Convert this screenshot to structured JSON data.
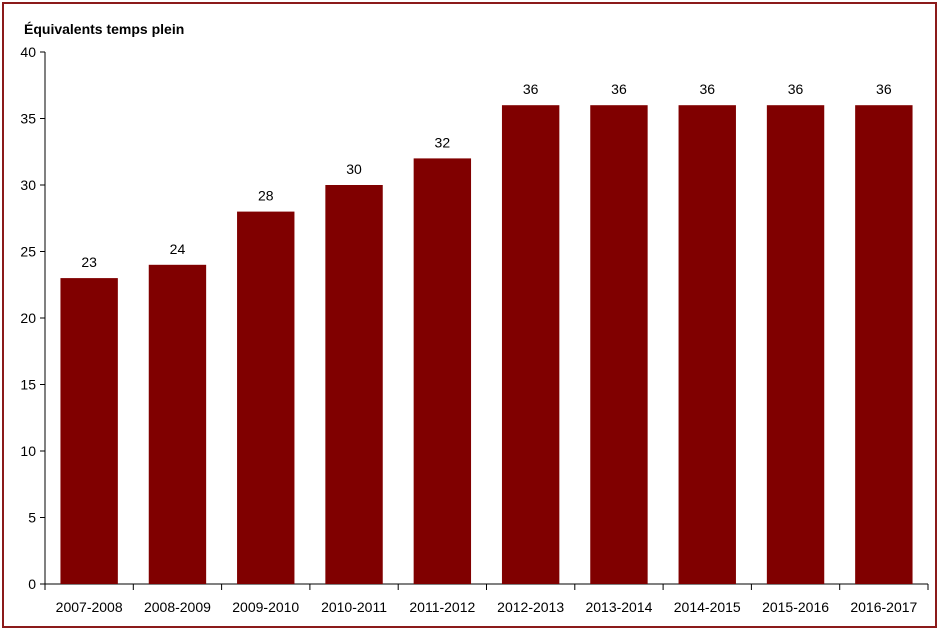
{
  "chart_data": {
    "type": "bar",
    "title": "",
    "xlabel": "",
    "ylabel": "Équivalents temps plein",
    "categories": [
      "2007-2008",
      "2008-2009",
      "2009-2010",
      "2010-2011",
      "2011-2012",
      "2012-2013",
      "2013-2014",
      "2014-2015",
      "2015-2016",
      "2016-2017"
    ],
    "values": [
      23,
      24,
      28,
      30,
      32,
      36,
      36,
      36,
      36,
      36
    ],
    "ylim": [
      0,
      40
    ],
    "yticks": [
      0,
      5,
      10,
      15,
      20,
      25,
      30,
      35,
      40
    ],
    "data_labels": true,
    "grid": false,
    "legend": "none",
    "colors": {
      "bar": "#800000",
      "axis": "#000000",
      "frame": "#8b1a1a"
    }
  }
}
